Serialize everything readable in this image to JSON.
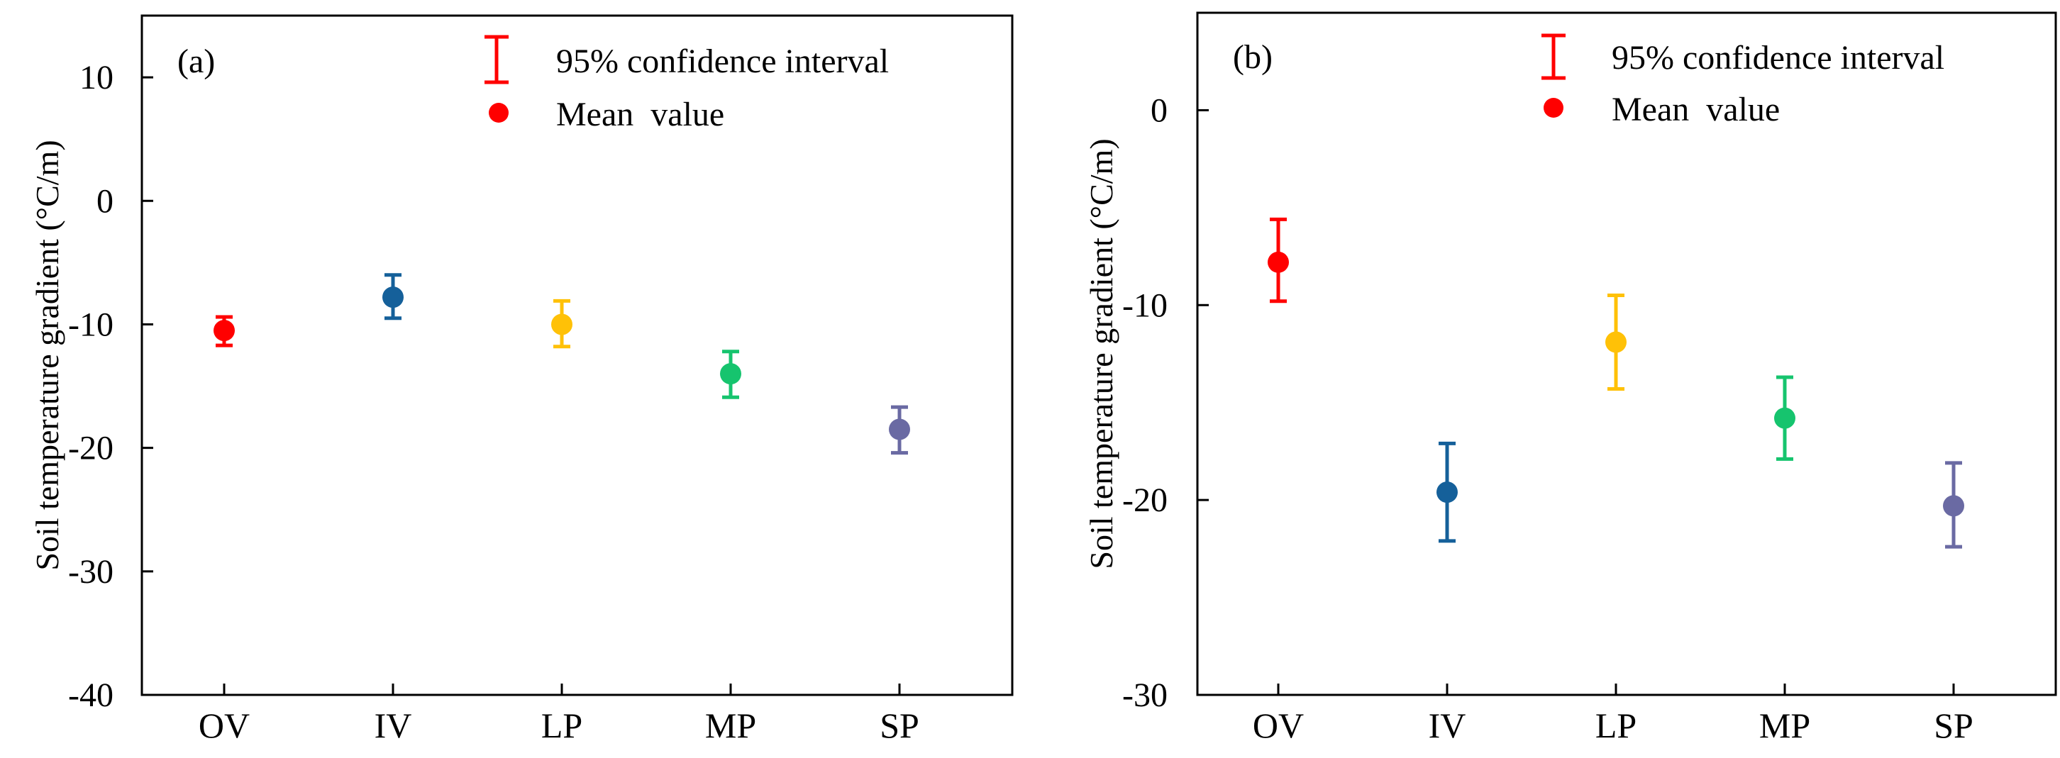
{
  "chart_data": [
    {
      "type": "errorbar",
      "panel_label": "(a)",
      "ylabel": "Soil temperature gradient (°C/m)",
      "xlabel": "",
      "ylim": [
        -40,
        15
      ],
      "yticks": [
        10,
        0,
        -10,
        -20,
        -30,
        -40
      ],
      "ytick_labels": [
        "10",
        "0",
        "-10",
        "-20",
        "-30",
        "-40"
      ],
      "categories": [
        "OV",
        "IV",
        "LP",
        "MP",
        "SP"
      ],
      "means": [
        -10.5,
        -7.8,
        -10.0,
        -14.0,
        -18.5
      ],
      "ci_lower": [
        -11.7,
        -9.5,
        -11.8,
        -15.9,
        -20.4
      ],
      "ci_upper": [
        -9.4,
        -6.0,
        -8.1,
        -12.2,
        -16.7
      ],
      "colors": [
        "#ff0000",
        "#15609a",
        "#ffc107",
        "#16c46e",
        "#6a6aa3"
      ],
      "legend": [
        {
          "symbol": "errorbar",
          "label": "95% confidence interval",
          "color": "#ff0000"
        },
        {
          "symbol": "dot",
          "label": "Mean  value",
          "color": "#ff0000"
        }
      ],
      "legend_position": "top-right"
    },
    {
      "type": "errorbar",
      "panel_label": "(b)",
      "ylabel": "Soil temperature gradient (°C/m)",
      "xlabel": "",
      "ylim": [
        -30,
        5
      ],
      "yticks": [
        0,
        -10,
        -20,
        -30
      ],
      "ytick_labels": [
        "0",
        "-10",
        "-20",
        "-30"
      ],
      "categories": [
        "OV",
        "IV",
        "LP",
        "MP",
        "SP"
      ],
      "means": [
        -7.8,
        -19.6,
        -11.9,
        -15.8,
        -20.3
      ],
      "ci_lower": [
        -9.8,
        -22.1,
        -14.3,
        -17.9,
        -22.4
      ],
      "ci_upper": [
        -5.6,
        -17.1,
        -9.5,
        -13.7,
        -18.1
      ],
      "colors": [
        "#ff0000",
        "#15609a",
        "#ffc107",
        "#16c46e",
        "#6a6aa3"
      ],
      "legend": [
        {
          "symbol": "errorbar",
          "label": "95% confidence interval",
          "color": "#ff0000"
        },
        {
          "symbol": "dot",
          "label": "Mean  value",
          "color": "#ff0000"
        }
      ],
      "legend_position": "top-right"
    }
  ]
}
